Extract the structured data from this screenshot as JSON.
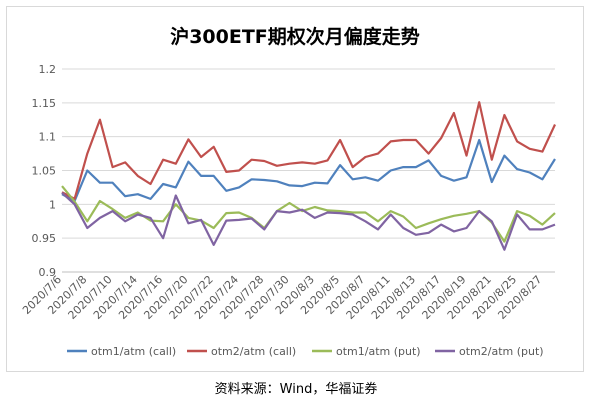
{
  "source_note": "资料来源：Wind，华福证券",
  "chart_data": {
    "type": "line",
    "title": "沪300ETF期权次月偏度走势",
    "xlabel": "",
    "ylabel": "",
    "ylim": [
      0.9,
      1.2
    ],
    "yticks": [
      "0.9",
      "0.95",
      "1",
      "1.05",
      "1.1",
      "1.15",
      "1.2"
    ],
    "grid": "horizontal",
    "legend_position": "bottom",
    "x": [
      "2020/7/6",
      "2020/7/7",
      "2020/7/8",
      "2020/7/9",
      "2020/7/10",
      "2020/7/13",
      "2020/7/14",
      "2020/7/15",
      "2020/7/16",
      "2020/7/17",
      "2020/7/20",
      "2020/7/21",
      "2020/7/22",
      "2020/7/23",
      "2020/7/24",
      "2020/7/27",
      "2020/7/28",
      "2020/7/29",
      "2020/7/30",
      "2020/7/31",
      "2020/8/3",
      "2020/8/4",
      "2020/8/5",
      "2020/8/6",
      "2020/8/7",
      "2020/8/10",
      "2020/8/11",
      "2020/8/12",
      "2020/8/13",
      "2020/8/14",
      "2020/8/17",
      "2020/8/18",
      "2020/8/19",
      "2020/8/20",
      "2020/8/21",
      "2020/8/24",
      "2020/8/25",
      "2020/8/26",
      "2020/8/27",
      "2020/8/28"
    ],
    "xtick_labels": [
      "2020/7/6",
      "2020/7/8",
      "2020/7/10",
      "2020/7/14",
      "2020/7/16",
      "2020/7/20",
      "2020/7/22",
      "2020/7/24",
      "2020/7/28",
      "2020/7/30",
      "2020/8/3",
      "2020/8/5",
      "2020/8/7",
      "2020/8/11",
      "2020/8/13",
      "2020/8/17",
      "2020/8/19",
      "2020/8/21",
      "2020/8/25",
      "2020/8/27"
    ],
    "series": [
      {
        "name": "otm1/atm (call)",
        "color": "#4f81bd",
        "values": [
          1.015,
          1.005,
          1.05,
          1.032,
          1.032,
          1.012,
          1.015,
          1.008,
          1.03,
          1.025,
          1.063,
          1.042,
          1.042,
          1.02,
          1.025,
          1.037,
          1.036,
          1.034,
          1.028,
          1.027,
          1.032,
          1.031,
          1.058,
          1.037,
          1.04,
          1.035,
          1.05,
          1.055,
          1.055,
          1.065,
          1.042,
          1.035,
          1.04,
          1.095,
          1.033,
          1.072,
          1.052,
          1.047,
          1.037,
          1.067
        ]
      },
      {
        "name": "otm2/atm (call)",
        "color": "#c0504d",
        "values": [
          1.018,
          1.008,
          1.075,
          1.125,
          1.055,
          1.062,
          1.042,
          1.03,
          1.066,
          1.06,
          1.096,
          1.07,
          1.085,
          1.048,
          1.05,
          1.066,
          1.064,
          1.057,
          1.06,
          1.062,
          1.06,
          1.065,
          1.095,
          1.055,
          1.07,
          1.075,
          1.093,
          1.095,
          1.095,
          1.075,
          1.098,
          1.135,
          1.072,
          1.151,
          1.066,
          1.132,
          1.093,
          1.082,
          1.078,
          1.118
        ]
      },
      {
        "name": "otm1/atm (put)",
        "color": "#9bbb59",
        "values": [
          1.027,
          1.004,
          0.975,
          1.005,
          0.993,
          0.98,
          0.988,
          0.976,
          0.975,
          1.0,
          0.98,
          0.976,
          0.965,
          0.987,
          0.988,
          0.98,
          0.965,
          0.99,
          1.002,
          0.99,
          0.996,
          0.991,
          0.99,
          0.988,
          0.988,
          0.975,
          0.99,
          0.982,
          0.965,
          0.972,
          0.978,
          0.983,
          0.986,
          0.99,
          0.973,
          0.945,
          0.99,
          0.983,
          0.97,
          0.987
        ]
      },
      {
        "name": "otm2/atm (put)",
        "color": "#8064a2",
        "values": [
          1.017,
          1.0,
          0.965,
          0.98,
          0.99,
          0.975,
          0.985,
          0.98,
          0.95,
          1.013,
          0.972,
          0.977,
          0.94,
          0.976,
          0.977,
          0.979,
          0.963,
          0.99,
          0.988,
          0.992,
          0.98,
          0.988,
          0.987,
          0.985,
          0.975,
          0.963,
          0.985,
          0.965,
          0.955,
          0.958,
          0.97,
          0.96,
          0.965,
          0.99,
          0.975,
          0.933,
          0.985,
          0.963,
          0.963,
          0.97
        ]
      }
    ]
  }
}
